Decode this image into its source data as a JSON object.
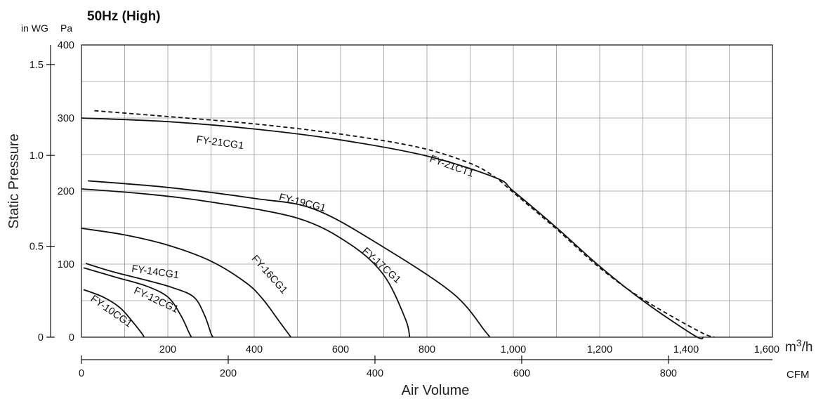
{
  "chart_data": {
    "type": "line",
    "title": "50Hz (High)",
    "xlabel": "Air Volume",
    "ylabel": "Static Pressure",
    "x_unit_primary": "m3/h",
    "x_unit_secondary": "CFM",
    "y_unit_primary": "Pa",
    "y_unit_secondary": "in WG",
    "xlim": [
      0,
      1600
    ],
    "ylim": [
      0,
      400
    ],
    "grid": true,
    "x_ticks": [
      "200",
      "400",
      "600",
      "800",
      "1,000",
      "1,200",
      "1,400",
      "1,600"
    ],
    "y_ticks": [
      "0",
      "100",
      "200",
      "300",
      "400"
    ],
    "cfm_ticks": [
      "0",
      "200",
      "400",
      "600",
      "800"
    ],
    "inwg_ticks": [
      "0",
      "0.5",
      "1.0",
      "1.5"
    ],
    "series": [
      {
        "name": "FY-10CG1",
        "dashed": false,
        "x": [
          5,
          50,
          90,
          120,
          140,
          145
        ],
        "y": [
          65,
          55,
          40,
          20,
          5,
          0
        ]
      },
      {
        "name": "FY-12CG1",
        "dashed": false,
        "x": [
          5,
          80,
          150,
          200,
          230,
          250,
          255
        ],
        "y": [
          95,
          82,
          70,
          55,
          30,
          5,
          0
        ]
      },
      {
        "name": "FY-14CG1",
        "dashed": false,
        "x": [
          10,
          70,
          150,
          210,
          260,
          285,
          300,
          305
        ],
        "y": [
          101,
          90,
          78,
          68,
          55,
          30,
          5,
          0
        ]
      },
      {
        "name": "FY-16CG1",
        "dashed": false,
        "x": [
          0,
          100,
          200,
          300,
          380,
          420,
          460,
          485
        ],
        "y": [
          149,
          140,
          126,
          104,
          75,
          52,
          20,
          0
        ]
      },
      {
        "name": "FY-17CG1",
        "dashed": false,
        "x": [
          0,
          150,
          300,
          500,
          620,
          700,
          750,
          760
        ],
        "y": [
          203,
          196,
          185,
          163,
          128,
          85,
          25,
          0
        ]
      },
      {
        "name": "FY-19CG1",
        "dashed": false,
        "x": [
          15,
          200,
          400,
          540,
          700,
          860,
          935,
          945
        ],
        "y": [
          214,
          205,
          190,
          175,
          123,
          60,
          8,
          0
        ]
      },
      {
        "name": "FY-21CG1",
        "dashed": false,
        "x": [
          0,
          200,
          400,
          600,
          800,
          960,
          1000,
          1100,
          1200,
          1300,
          1420,
          1440
        ],
        "y": [
          300,
          295,
          285,
          270,
          248,
          218,
          200,
          150,
          97,
          50,
          2,
          0
        ]
      },
      {
        "name": "FY-21CT1",
        "dashed": true,
        "x": [
          30,
          200,
          400,
          600,
          780,
          900,
          960,
          1000,
          1100,
          1200,
          1300,
          1430,
          1465
        ],
        "y": [
          310,
          302,
          292,
          278,
          260,
          238,
          218,
          198,
          148,
          95,
          52,
          8,
          0
        ]
      }
    ]
  }
}
